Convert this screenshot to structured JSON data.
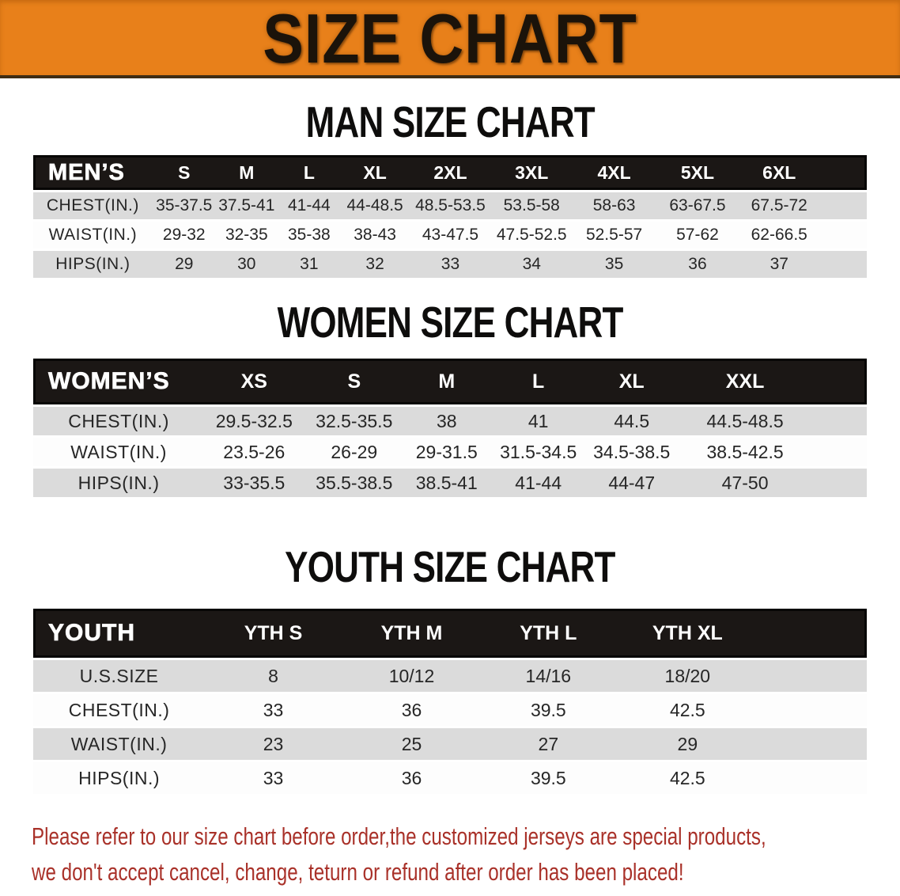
{
  "banner": {
    "title": "SIZE CHART"
  },
  "sections": [
    {
      "title": "MAN SIZE CHART",
      "header_label": "MEN’S",
      "columns": [
        "S",
        "M",
        "L",
        "XL",
        "2XL",
        "3XL",
        "4XL",
        "5XL",
        "6XL"
      ],
      "rows": [
        {
          "label": "CHEST(IN.)",
          "values": [
            "35-37.5",
            "37.5-41",
            "41-44",
            "44-48.5",
            "48.5-53.5",
            "53.5-58",
            "58-63",
            "63-67.5",
            "67.5-72"
          ]
        },
        {
          "label": "WAIST(IN.)",
          "values": [
            "29-32",
            "32-35",
            "35-38",
            "38-43",
            "43-47.5",
            "47.5-52.5",
            "52.5-57",
            "57-62",
            "62-66.5"
          ]
        },
        {
          "label": "HIPS(IN.)",
          "values": [
            "29",
            "30",
            "31",
            "32",
            "33",
            "34",
            "35",
            "36",
            "37"
          ]
        }
      ]
    },
    {
      "title": "WOMEN SIZE CHART",
      "header_label": "WOMEN’S",
      "columns": [
        "XS",
        "S",
        "M",
        "L",
        "XL",
        "XXL"
      ],
      "rows": [
        {
          "label": "CHEST(IN.)",
          "values": [
            "29.5-32.5",
            "32.5-35.5",
            "38",
            "41",
            "44.5",
            "44.5-48.5"
          ]
        },
        {
          "label": "WAIST(IN.)",
          "values": [
            "23.5-26",
            "26-29",
            "29-31.5",
            "31.5-34.5",
            "34.5-38.5",
            "38.5-42.5"
          ]
        },
        {
          "label": "HIPS(IN.)",
          "values": [
            "33-35.5",
            "35.5-38.5",
            "38.5-41",
            "41-44",
            "44-47",
            "47-50"
          ]
        }
      ]
    },
    {
      "title": "YOUTH SIZE CHART",
      "header_label": "YOUTH",
      "columns": [
        "YTH S",
        "YTH M",
        "YTH L",
        "YTH XL"
      ],
      "rows": [
        {
          "label": "U.S.SIZE",
          "values": [
            "8",
            "10/12",
            "14/16",
            "18/20"
          ]
        },
        {
          "label": "CHEST(IN.)",
          "values": [
            "33",
            "36",
            "39.5",
            "42.5"
          ]
        },
        {
          "label": "WAIST(IN.)",
          "values": [
            "23",
            "25",
            "27",
            "29"
          ]
        },
        {
          "label": "HIPS(IN.)",
          "values": [
            "33",
            "36",
            "39.5",
            "42.5"
          ]
        }
      ]
    }
  ],
  "disclaimer": {
    "line1": "Please refer to our size chart before order,the customized jerseys are special products,",
    "line2": "we don't accept cancel, change, teturn or refund after order has been placed!"
  },
  "colors": {
    "banner_bg": "#E8801A",
    "banner_text": "#1B130A",
    "header_bar_bg": "#1B1715",
    "header_bar_border": "#070605",
    "header_text": "#FFFFFF",
    "row_gray": "#DBDBDB",
    "row_white": "#FDFDFD",
    "data_text": "#262626",
    "title_text": "#0E0D0C",
    "disclaimer_text": "#A93129"
  }
}
